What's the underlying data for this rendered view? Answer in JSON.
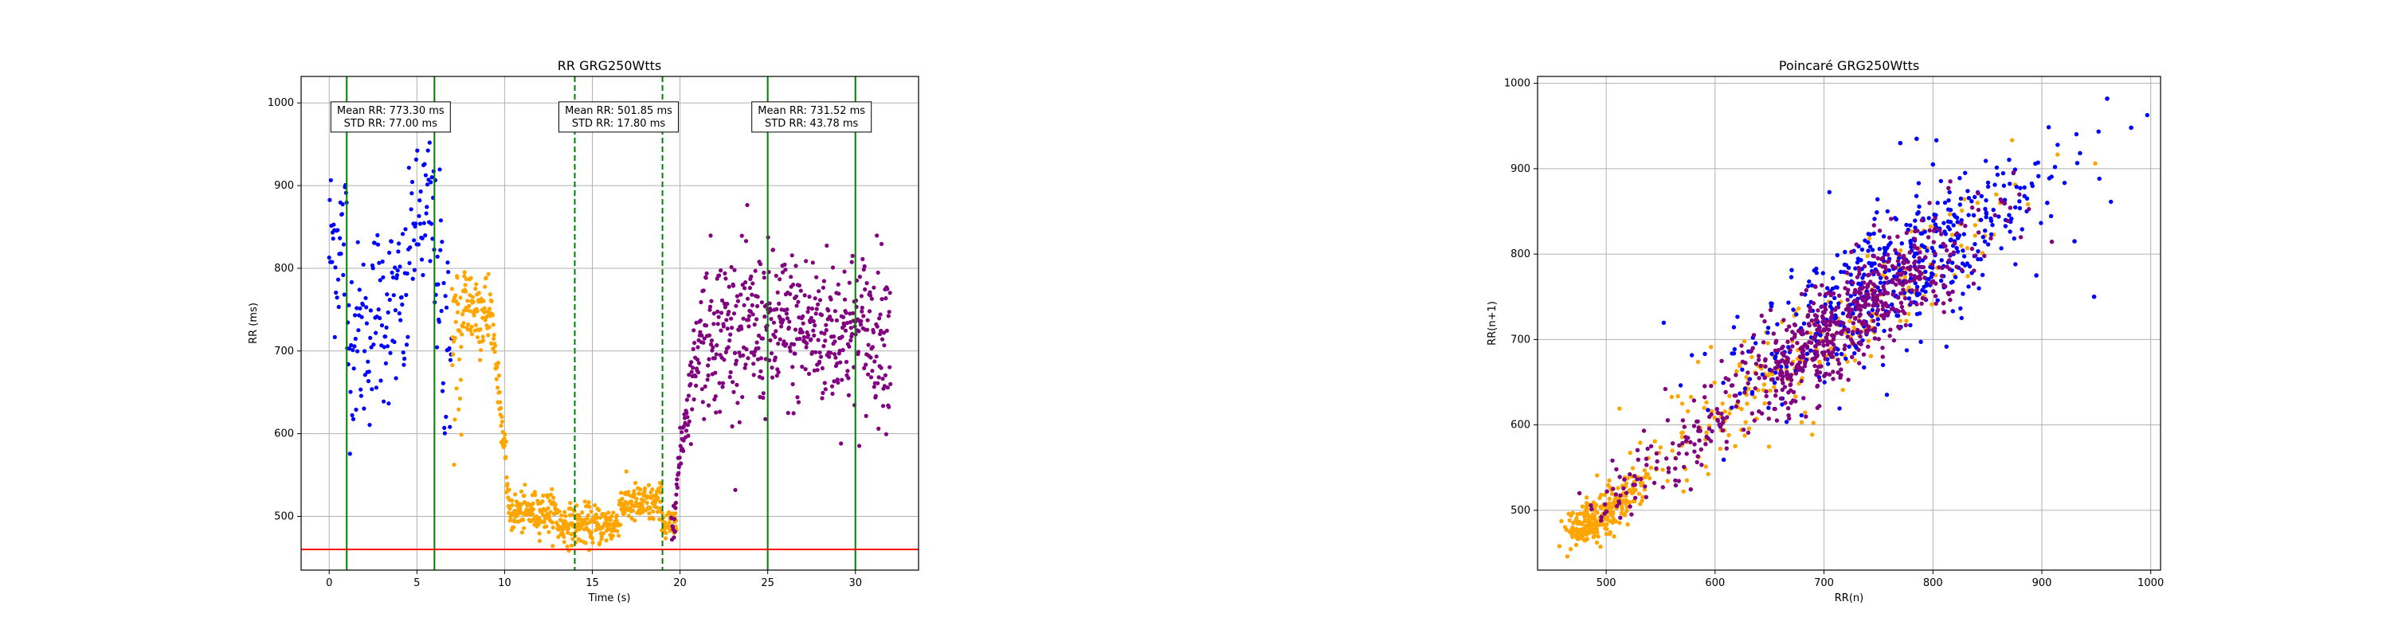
{
  "colors": {
    "blue": "#0000ff",
    "orange": "#ffa500",
    "purple": "#800080",
    "green": "#008000",
    "red": "#ff0000",
    "grid": "#b0b0b0"
  },
  "chart_data": [
    {
      "type": "scatter",
      "title": "RR GRG250Wtts",
      "xlabel": "Time (s)",
      "ylabel": "RR (ms)",
      "xlim": [
        -1.6,
        33.6
      ],
      "ylim": [
        435,
        1032
      ],
      "xticks": [
        0,
        5,
        10,
        15,
        20,
        25,
        30
      ],
      "yticks": [
        500,
        600,
        700,
        800,
        900,
        1000
      ],
      "grid": true,
      "segments": [
        {
          "color": "blue",
          "x_range": [
            0,
            7
          ],
          "mean": 773.3,
          "std": 77.0
        },
        {
          "color": "orange",
          "x_range": [
            7,
            20
          ],
          "mean": 501.85,
          "std": 17.8
        },
        {
          "color": "purple",
          "x_range": [
            20,
            32
          ],
          "mean": 731.52,
          "std": 43.78
        }
      ],
      "vertical_lines": [
        {
          "x": 1,
          "style": "solid",
          "color": "green"
        },
        {
          "x": 6,
          "style": "solid",
          "color": "green"
        },
        {
          "x": 14,
          "style": "dashed",
          "color": "green"
        },
        {
          "x": 19,
          "style": "dashed",
          "color": "green"
        },
        {
          "x": 25,
          "style": "solid",
          "color": "green"
        },
        {
          "x": 30,
          "style": "solid",
          "color": "green"
        }
      ],
      "horizontal_lines": [
        {
          "y": 460,
          "style": "solid",
          "color": "red"
        }
      ],
      "annotations": [
        {
          "x": 3.5,
          "y": 983,
          "lines": [
            "Mean RR: 773.30 ms",
            "STD RR: 77.00 ms"
          ]
        },
        {
          "x": 16.5,
          "y": 983,
          "lines": [
            "Mean RR: 501.85 ms",
            "STD RR: 17.80 ms"
          ]
        },
        {
          "x": 27.5,
          "y": 983,
          "lines": [
            "Mean RR: 731.52 ms",
            "STD RR: 43.78 ms"
          ]
        }
      ]
    },
    {
      "type": "scatter",
      "title": "Poincaré GRG250Wtts",
      "xlabel": "RR(n)",
      "ylabel": "RR(n+1)",
      "xlim": [
        437,
        1009
      ],
      "ylim": [
        430,
        1008
      ],
      "xticks": [
        500,
        600,
        700,
        800,
        900,
        1000
      ],
      "yticks": [
        500,
        600,
        700,
        800,
        900,
        1000
      ],
      "grid": true,
      "clusters": [
        {
          "color": "blue",
          "center": [
            760,
            770
          ],
          "spread_along_diagonal": 65,
          "spread_across": 22
        },
        {
          "color": "orange",
          "center": [
            620,
            620
          ],
          "spread_along_diagonal": 95,
          "spread_across": 12
        },
        {
          "color": "purple",
          "center": [
            720,
            722
          ],
          "spread_along_diagonal": 55,
          "spread_across": 16
        }
      ],
      "outliers": [
        {
          "x": 960,
          "y": 982,
          "color": "blue"
        },
        {
          "x": 982,
          "y": 948,
          "color": "blue"
        },
        {
          "x": 948,
          "y": 750,
          "color": "blue"
        },
        {
          "x": 930,
          "y": 815,
          "color": "blue"
        },
        {
          "x": 905,
          "y": 860,
          "color": "blue"
        },
        {
          "x": 895,
          "y": 775,
          "color": "blue"
        },
        {
          "x": 785,
          "y": 935,
          "color": "blue"
        },
        {
          "x": 770,
          "y": 930,
          "color": "blue"
        },
        {
          "x": 800,
          "y": 905,
          "color": "blue"
        }
      ]
    }
  ]
}
